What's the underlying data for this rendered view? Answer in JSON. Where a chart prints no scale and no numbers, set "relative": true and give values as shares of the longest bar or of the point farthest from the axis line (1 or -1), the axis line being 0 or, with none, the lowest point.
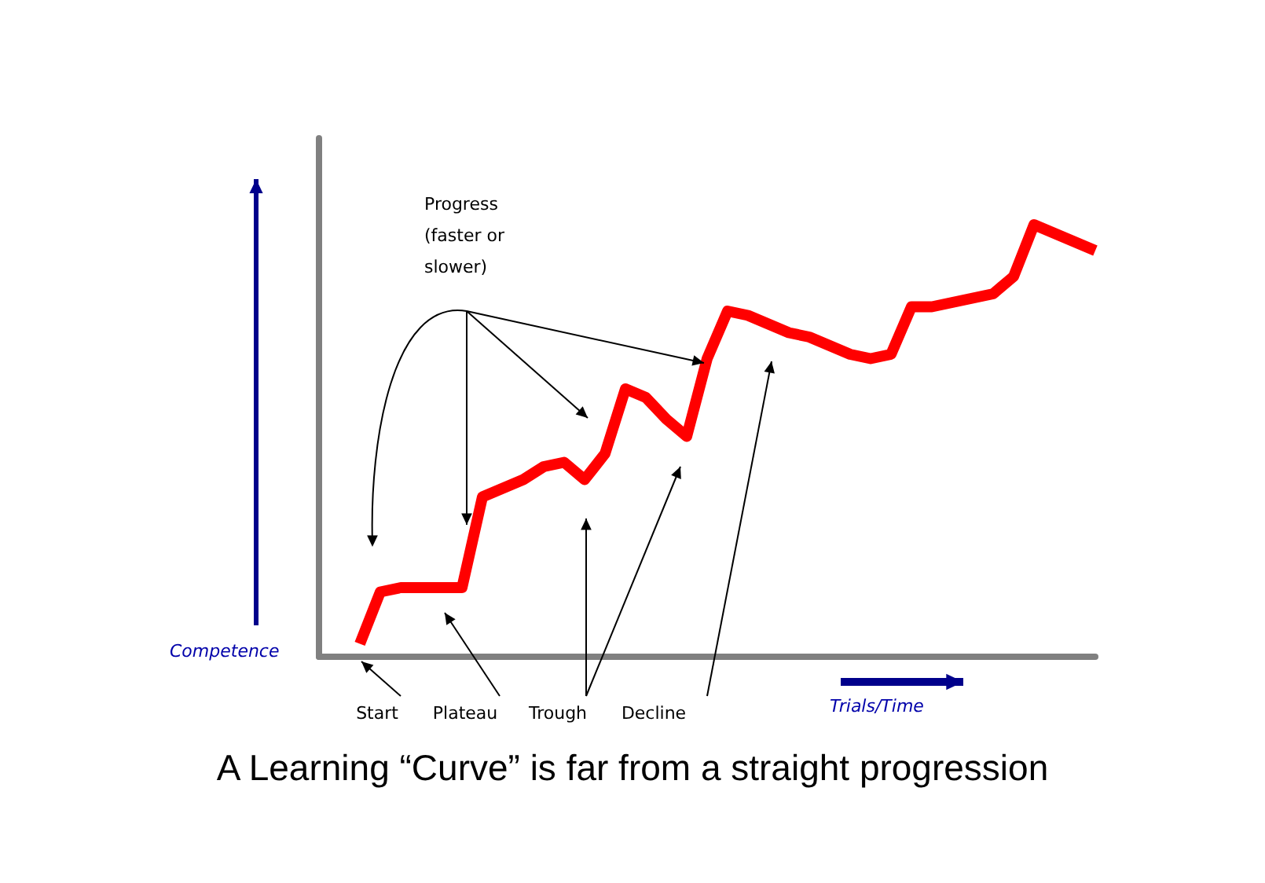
{
  "chart_data": {
    "type": "line",
    "relative": true,
    "title": "A Learning “Curve” is far from a straight progression",
    "xlabel": "Trials/Time",
    "ylabel": "Competence",
    "categories": [
      null,
      null,
      null,
      null,
      null,
      null,
      null,
      null,
      null,
      null,
      null,
      null,
      null,
      null,
      null,
      null,
      null,
      null,
      null,
      null,
      null,
      null,
      null,
      null,
      null,
      null,
      null,
      null,
      null,
      null,
      null,
      null,
      null,
      null,
      null,
      null,
      null,
      null,
      null
    ],
    "series": [
      {
        "color": "#ff0000",
        "values": [
          null,
          null,
          0.03,
          0.15,
          0.16,
          0.16,
          0.16,
          0.16,
          0.37,
          0.39,
          0.41,
          0.44,
          0.45,
          0.41,
          0.47,
          0.62,
          0.6,
          0.55,
          0.51,
          0.69,
          0.8,
          0.79,
          0.77,
          0.75,
          0.74,
          0.72,
          0.7,
          0.69,
          0.7,
          0.81,
          0.81,
          0.82,
          0.83,
          0.84,
          0.88,
          1.0,
          0.98,
          0.96,
          0.94
        ]
      }
    ],
    "annotations": [
      "Progress\n(faster or\nslower)",
      "Start",
      "Plateau",
      "Trough",
      "Decline"
    ],
    "marker": "none",
    "line_style": "solid"
  }
}
